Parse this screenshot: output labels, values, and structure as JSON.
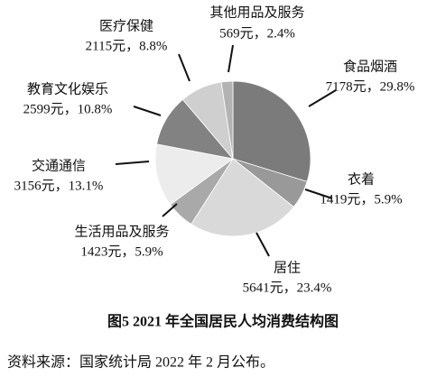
{
  "chart_data": {
    "type": "pie",
    "title": "图5   2021 年全国居民人均消费结构图",
    "source": "资料来源：国家统计局 2022 年 2 月公布。",
    "categories": [
      "食品烟酒",
      "衣着",
      "居住",
      "生活用品及服务",
      "交通通信",
      "教育文化娱乐",
      "医疗保健",
      "其他用品及服务"
    ],
    "values": [
      29.8,
      5.9,
      23.4,
      5.9,
      13.1,
      10.8,
      8.8,
      2.4
    ],
    "value_labels": [
      "7178元，29.8%",
      "1419元，5.9%",
      "5641元，23.4%",
      "1423元，5.9%",
      "3156元，13.1%",
      "2599元，10.8%",
      "2115元，8.8%",
      "569元，2.4%"
    ],
    "colors": [
      "#7b7b7b",
      "#999999",
      "#d9d9d9",
      "#a9a9a9",
      "#ececec",
      "#828282",
      "#cfcfcf",
      "#b3b3b3"
    ]
  }
}
